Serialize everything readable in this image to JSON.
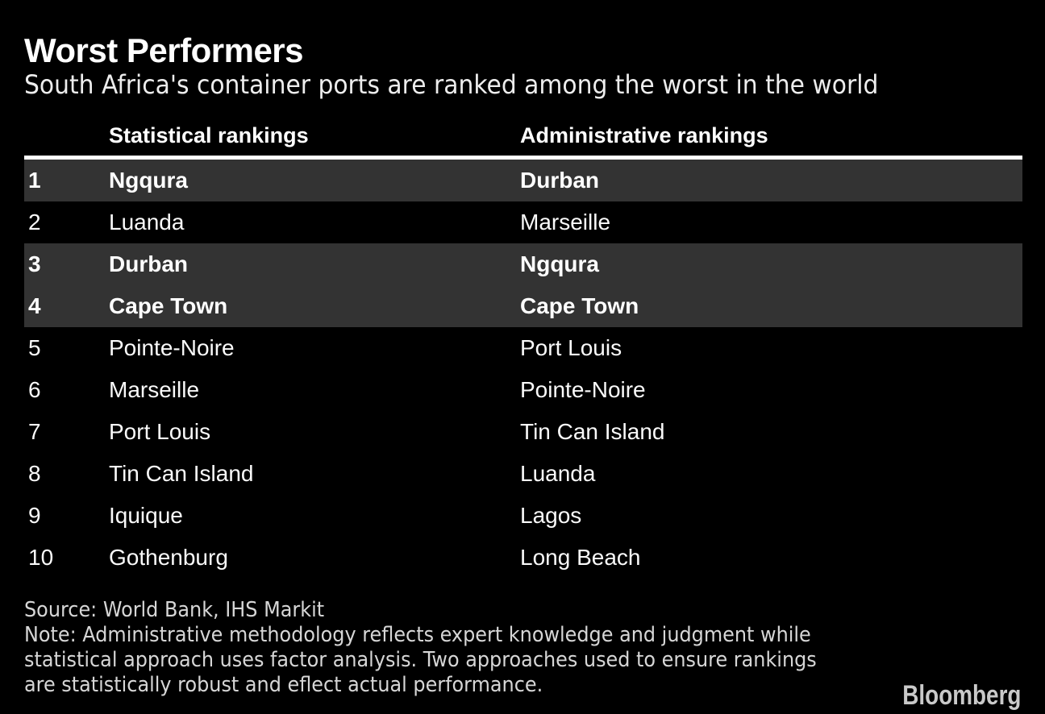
{
  "header": {
    "title": "Worst Performers",
    "subtitle": "South Africa's container ports are ranked among the worst in the world"
  },
  "chart_data": {
    "type": "table",
    "title": "Worst Performers",
    "subtitle": "South Africa's container ports are ranked among the worst in the world",
    "columns": [
      "Statistical rankings",
      "Administrative rankings"
    ],
    "rows": [
      {
        "rank": "1",
        "statistical": "Ngqura",
        "administrative": "Durban",
        "highlighted": true
      },
      {
        "rank": "2",
        "statistical": "Luanda",
        "administrative": "Marseille",
        "highlighted": false
      },
      {
        "rank": "3",
        "statistical": "Durban",
        "administrative": "Ngqura",
        "highlighted": true
      },
      {
        "rank": "4",
        "statistical": "Cape Town",
        "administrative": "Cape Town",
        "highlighted": true
      },
      {
        "rank": "5",
        "statistical": "Pointe-Noire",
        "administrative": "Port Louis",
        "highlighted": false
      },
      {
        "rank": "6",
        "statistical": "Marseille",
        "administrative": "Pointe-Noire",
        "highlighted": false
      },
      {
        "rank": "7",
        "statistical": "Port Louis",
        "administrative": "Tin Can Island",
        "highlighted": false
      },
      {
        "rank": "8",
        "statistical": "Tin Can Island",
        "administrative": "Luanda",
        "highlighted": false
      },
      {
        "rank": "9",
        "statistical": "Iquique",
        "administrative": "Lagos",
        "highlighted": false
      },
      {
        "rank": "10",
        "statistical": "Gothenburg",
        "administrative": "Long Beach",
        "highlighted": false
      }
    ],
    "highlighted_ranks": [
      1,
      3,
      4
    ]
  },
  "footer": {
    "source": "Source: World Bank, IHS Markit",
    "note_lines": [
      "Note: Administrative methodology reflects expert knowledge and judgment while",
      "statistical approach uses factor analysis. Two approaches used to ensure rankings",
      "are statistically robust and eflect actual performance."
    ],
    "brand": "Bloomberg"
  },
  "colors": {
    "background": "#000000",
    "highlight_row": "#333333",
    "rule": "#ffffff",
    "text_primary": "#ffffff",
    "text_footer": "#d6d6d6",
    "brand_text": "#c9c9c9"
  }
}
